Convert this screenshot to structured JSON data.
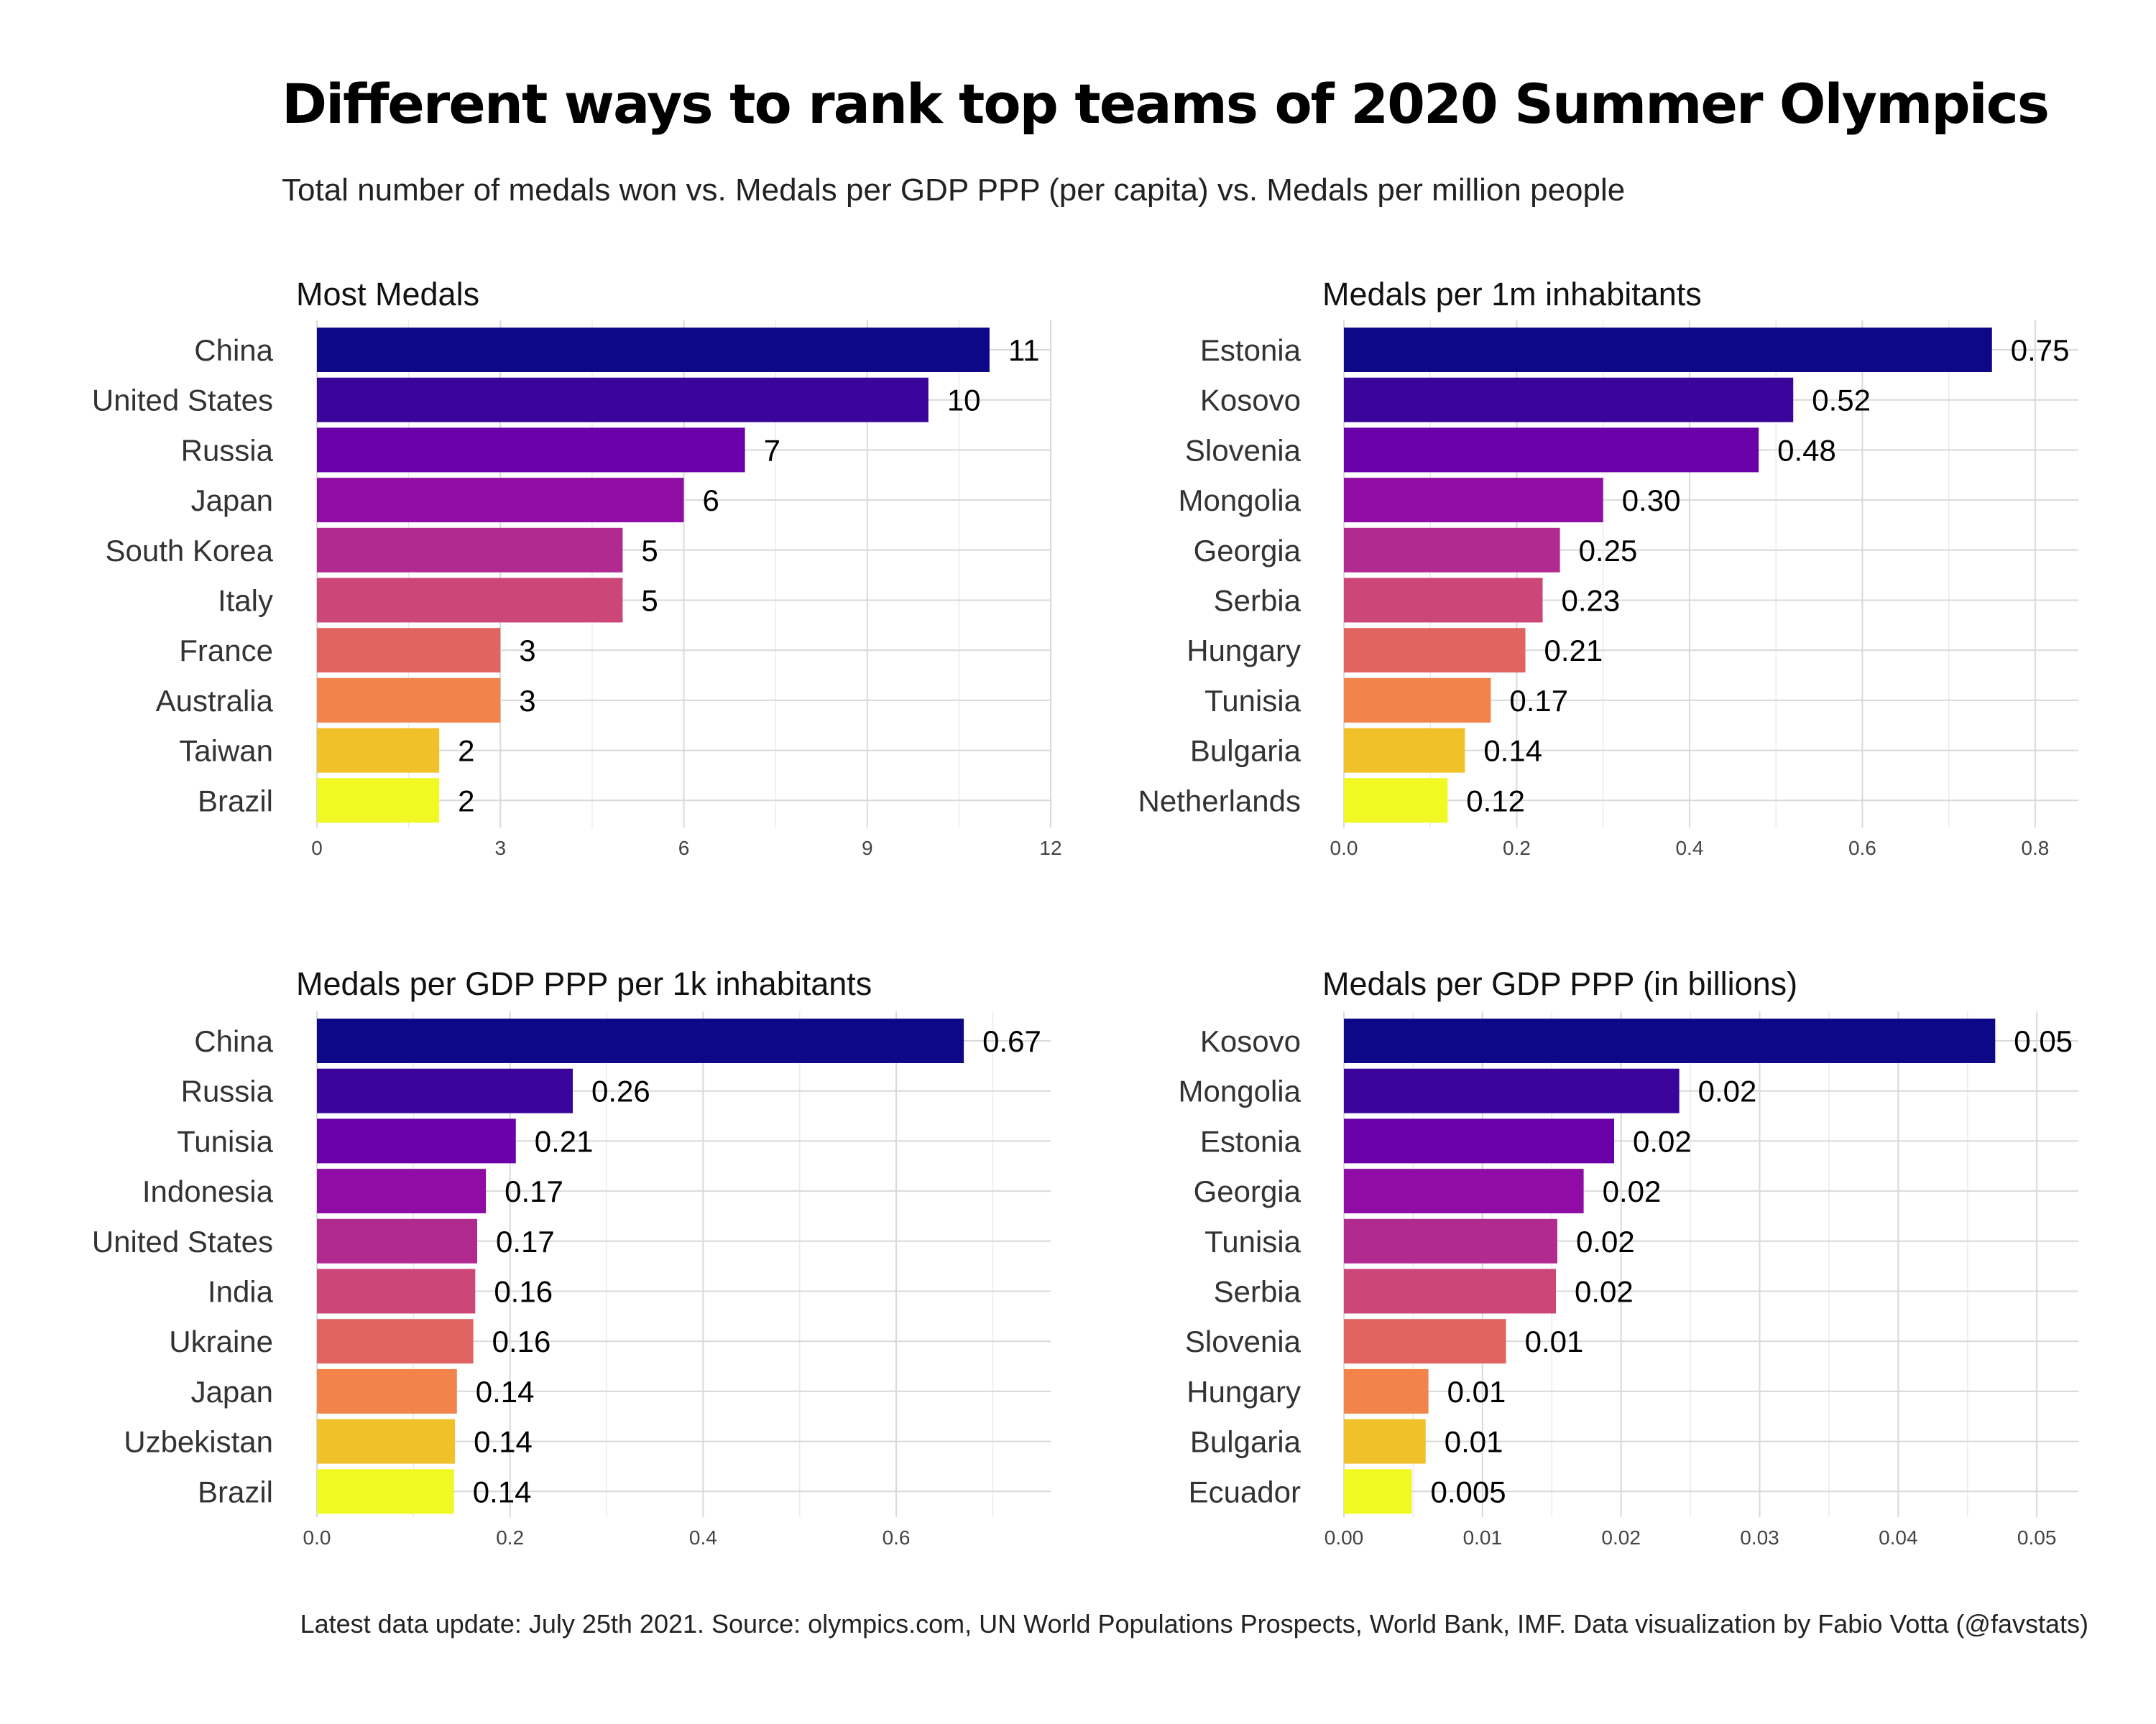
{
  "title": "Different ways to rank top teams of 2020 Summer Olympics",
  "subtitle": "Total number of medals won vs. Medals per GDP PPP (per capita) vs. Medals per million people",
  "caption": "Latest data update: July 25th 2021. Source: olympics.com, UN World Populations Prospects, World Bank, IMF. Data visualization by Fabio Votta (@favstats)",
  "palette": [
    "#0d0887",
    "#3b049a",
    "#6a00a8",
    "#8f0da4",
    "#b12a90",
    "#cc4778",
    "#e16462",
    "#f2844b",
    "#f1c12a",
    "#f0f921"
  ],
  "chart_data": [
    {
      "type": "bar",
      "orientation": "horizontal",
      "title": "Most Medals",
      "categories": [
        "China",
        "United States",
        "Russia",
        "Japan",
        "South Korea",
        "Italy",
        "France",
        "Australia",
        "Taiwan",
        "Brazil"
      ],
      "values": [
        11,
        10,
        7,
        6,
        5,
        5,
        3,
        3,
        2,
        2
      ],
      "labels": [
        "11",
        "10",
        "7",
        "6",
        "5",
        "5",
        "3",
        "3",
        "2",
        "2"
      ],
      "xlim": [
        0,
        12
      ],
      "ticks": [
        0,
        3,
        6,
        9,
        12
      ],
      "tick_labels": [
        "0",
        "3",
        "6",
        "9",
        "12"
      ],
      "grid": true
    },
    {
      "type": "bar",
      "orientation": "horizontal",
      "title": "Medals per 1m inhabitants",
      "categories": [
        "Estonia",
        "Kosovo",
        "Slovenia",
        "Mongolia",
        "Georgia",
        "Serbia",
        "Hungary",
        "Tunisia",
        "Bulgaria",
        "Netherlands"
      ],
      "values": [
        0.75,
        0.52,
        0.48,
        0.3,
        0.25,
        0.23,
        0.21,
        0.17,
        0.14,
        0.12
      ],
      "labels": [
        "0.75",
        "0.52",
        "0.48",
        "0.30",
        "0.25",
        "0.23",
        "0.21",
        "0.17",
        "0.14",
        "0.12"
      ],
      "xlim": [
        0,
        0.85
      ],
      "ticks": [
        0,
        0.2,
        0.4,
        0.6,
        0.8
      ],
      "tick_labels": [
        "0.0",
        "0.2",
        "0.4",
        "0.6",
        "0.8"
      ],
      "grid": true
    },
    {
      "type": "bar",
      "orientation": "horizontal",
      "title": "Medals per GDP PPP per 1k inhabitants",
      "categories": [
        "China",
        "Russia",
        "Tunisia",
        "Indonesia",
        "United States",
        "India",
        "Ukraine",
        "Japan",
        "Uzbekistan",
        "Brazil"
      ],
      "values": [
        0.67,
        0.265,
        0.206,
        0.175,
        0.166,
        0.164,
        0.162,
        0.145,
        0.143,
        0.142
      ],
      "labels": [
        "0.67",
        "0.26",
        "0.21",
        "0.17",
        "0.17",
        "0.16",
        "0.16",
        "0.14",
        "0.14",
        "0.14"
      ],
      "xlim": [
        0,
        0.76
      ],
      "ticks": [
        0,
        0.2,
        0.4,
        0.6
      ],
      "tick_labels": [
        "0.0",
        "0.2",
        "0.4",
        "0.6"
      ],
      "grid": true
    },
    {
      "type": "bar",
      "orientation": "horizontal",
      "title": "Medals per GDP PPP (in billions)",
      "categories": [
        "Kosovo",
        "Mongolia",
        "Estonia",
        "Georgia",
        "Tunisia",
        "Serbia",
        "Slovenia",
        "Hungary",
        "Bulgaria",
        "Ecuador"
      ],
      "values": [
        0.047,
        0.0242,
        0.0195,
        0.0173,
        0.0154,
        0.0153,
        0.0117,
        0.0061,
        0.0059,
        0.0049
      ],
      "labels": [
        "0.05",
        "0.02",
        "0.02",
        "0.02",
        "0.02",
        "0.02",
        "0.01",
        "0.01",
        "0.01",
        "0.005"
      ],
      "xlim": [
        0,
        0.053
      ],
      "ticks": [
        0,
        0.01,
        0.02,
        0.03,
        0.04,
        0.05
      ],
      "tick_labels": [
        "0.00",
        "0.01",
        "0.02",
        "0.03",
        "0.04",
        "0.05"
      ],
      "grid": true
    }
  ]
}
